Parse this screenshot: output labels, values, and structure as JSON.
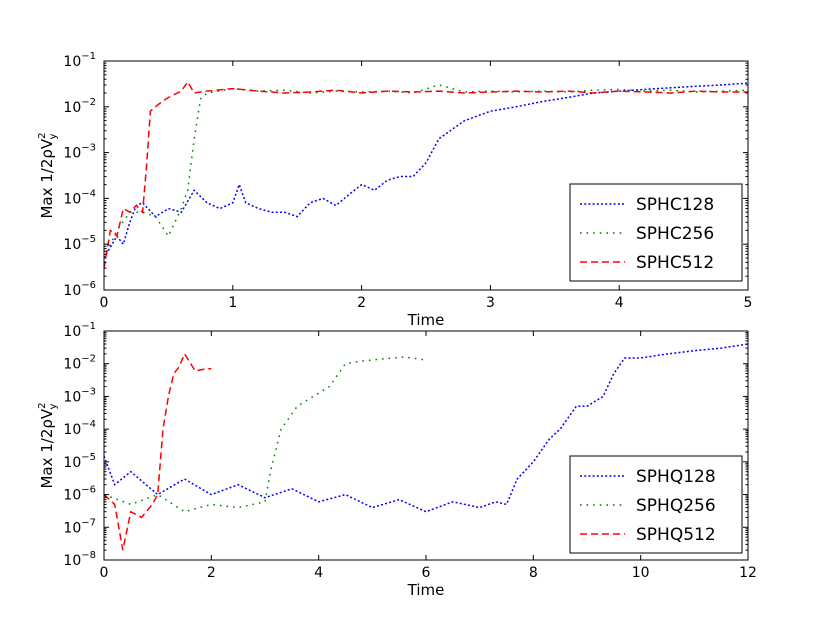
{
  "chart_data": [
    {
      "type": "line",
      "id": "top",
      "xlabel": "Time",
      "ylabel": "Max 1/2ρV",
      "ylabel_sub": "y",
      "ylabel_sup": "2",
      "yscale": "log",
      "xlim": [
        0,
        5
      ],
      "ylim_exp": [
        -6,
        -1
      ],
      "xticks": [
        0,
        1,
        2,
        3,
        4,
        5
      ],
      "xtick_labels": [
        "0",
        "1",
        "2",
        "3",
        "4",
        "5"
      ],
      "ytick_exps": [
        -6,
        -5,
        -4,
        -3,
        -2,
        -1
      ],
      "ytick_base": "10",
      "ytick_exp_labels": [
        "−6",
        "−5",
        "−4",
        "−3",
        "−2",
        "−1"
      ],
      "legend_position": "lower-right",
      "series": [
        {
          "name": "SPHC128",
          "color": "#0000ff",
          "dash": "2,2.2",
          "x": [
            0,
            0.1,
            0.15,
            0.2,
            0.25,
            0.3,
            0.4,
            0.5,
            0.6,
            0.7,
            0.8,
            0.9,
            1.0,
            1.05,
            1.1,
            1.2,
            1.3,
            1.4,
            1.5,
            1.6,
            1.7,
            1.8,
            1.9,
            2.0,
            2.1,
            2.2,
            2.3,
            2.4,
            2.5,
            2.6,
            2.8,
            3.0,
            3.2,
            3.4,
            3.6,
            3.8,
            4.0,
            4.2,
            4.4,
            4.6,
            4.8,
            5.0
          ],
          "y": [
            5e-06,
            1.5e-05,
            1e-05,
            3e-05,
            7e-05,
            8e-05,
            4e-05,
            6e-05,
            5e-05,
            0.00015,
            8e-05,
            6e-05,
            8e-05,
            0.0002,
            8e-05,
            6e-05,
            5e-05,
            5e-05,
            4e-05,
            8e-05,
            0.0001,
            7e-05,
            0.00012,
            0.0002,
            0.00015,
            0.00025,
            0.0003,
            0.0003,
            0.0006,
            0.002,
            0.005,
            0.008,
            0.01,
            0.013,
            0.016,
            0.02,
            0.022,
            0.024,
            0.026,
            0.028,
            0.03,
            0.033
          ]
        },
        {
          "name": "SPHC256",
          "color": "#008000",
          "dash": "1.6,5",
          "x": [
            0,
            0.1,
            0.2,
            0.3,
            0.4,
            0.5,
            0.6,
            0.65,
            0.7,
            0.75,
            0.8,
            1.0,
            1.2,
            1.4,
            1.6,
            1.8,
            2.0,
            2.2,
            2.4,
            2.6,
            2.8,
            3.0,
            3.2,
            3.4,
            3.6,
            3.8,
            4.0,
            4.2,
            4.4,
            4.6,
            4.8,
            5.0
          ],
          "y": [
            5e-06,
            2e-05,
            5e-05,
            5e-05,
            4e-05,
            1.5e-05,
            6e-05,
            0.00015,
            0.002,
            0.015,
            0.02,
            0.025,
            0.022,
            0.023,
            0.02,
            0.022,
            0.021,
            0.022,
            0.02,
            0.03,
            0.021,
            0.022,
            0.021,
            0.022,
            0.021,
            0.023,
            0.024,
            0.022,
            0.023,
            0.021,
            0.022,
            0.023
          ]
        },
        {
          "name": "SPHC512",
          "color": "#ff0000",
          "dash": "7,4",
          "x": [
            0,
            0.05,
            0.1,
            0.15,
            0.2,
            0.25,
            0.3,
            0.33,
            0.36,
            0.4,
            0.45,
            0.5,
            0.6,
            0.65,
            0.7,
            0.8,
            1.0,
            1.2,
            1.4,
            1.6,
            1.8,
            2.0,
            2.2,
            2.4,
            2.6,
            2.8,
            3.0,
            3.2,
            3.4,
            3.6,
            3.8,
            4.0,
            4.2,
            4.4,
            4.6,
            4.8,
            5.0
          ],
          "y": [
            3e-06,
            2e-05,
            1.5e-05,
            6e-05,
            5e-05,
            7e-05,
            5e-05,
            0.0005,
            0.008,
            0.01,
            0.013,
            0.016,
            0.022,
            0.035,
            0.02,
            0.022,
            0.025,
            0.022,
            0.02,
            0.021,
            0.023,
            0.02,
            0.022,
            0.021,
            0.022,
            0.02,
            0.021,
            0.022,
            0.021,
            0.022,
            0.02,
            0.022,
            0.021,
            0.02,
            0.022,
            0.021,
            0.021
          ]
        }
      ]
    },
    {
      "type": "line",
      "id": "bottom",
      "xlabel": "Time",
      "ylabel": "Max 1/2ρV",
      "ylabel_sub": "y",
      "ylabel_sup": "2",
      "yscale": "log",
      "xlim": [
        0,
        12
      ],
      "ylim_exp": [
        -8,
        -1
      ],
      "xticks": [
        0,
        2,
        4,
        6,
        8,
        10,
        12
      ],
      "xtick_labels": [
        "0",
        "2",
        "4",
        "6",
        "8",
        "10",
        "12"
      ],
      "ytick_exps": [
        -8,
        -7,
        -6,
        -5,
        -4,
        -3,
        -2,
        -1
      ],
      "ytick_base": "10",
      "ytick_exp_labels": [
        "−8",
        "−7",
        "−6",
        "−5",
        "−4",
        "−3",
        "−2",
        "−1"
      ],
      "legend_position": "lower-right",
      "series": [
        {
          "name": "SPHQ128",
          "color": "#0000ff",
          "dash": "2,2.2",
          "x": [
            0,
            0.2,
            0.5,
            1.0,
            1.5,
            2.0,
            2.5,
            3.0,
            3.5,
            4.0,
            4.5,
            5.0,
            5.5,
            6.0,
            6.5,
            7.0,
            7.3,
            7.5,
            7.7,
            8.0,
            8.3,
            8.5,
            8.8,
            9.0,
            9.3,
            9.5,
            9.7,
            10.0,
            10.5,
            11.0,
            11.5,
            12.0
          ],
          "y": [
            1.5e-05,
            2e-06,
            5e-06,
            1e-06,
            3e-06,
            1e-06,
            2e-06,
            8e-07,
            1.5e-06,
            6e-07,
            1e-06,
            4e-07,
            7e-07,
            3e-07,
            6e-07,
            4e-07,
            6e-07,
            5e-07,
            3e-06,
            1e-05,
            5e-05,
            0.0001,
            0.0005,
            0.0005,
            0.001,
            0.005,
            0.015,
            0.015,
            0.02,
            0.025,
            0.03,
            0.04
          ]
        },
        {
          "name": "SPHQ256",
          "color": "#008000",
          "dash": "1.6,5",
          "x": [
            0,
            0.5,
            1.0,
            1.5,
            2.0,
            2.5,
            3.0,
            3.1,
            3.3,
            3.6,
            3.9,
            4.2,
            4.5,
            4.8,
            5.2,
            5.6,
            6.0
          ],
          "y": [
            1e-06,
            5e-07,
            1e-06,
            3e-07,
            5e-07,
            4e-07,
            6e-07,
            5e-06,
            0.0001,
            0.0005,
            0.001,
            0.002,
            0.01,
            0.012,
            0.014,
            0.016,
            0.013
          ]
        },
        {
          "name": "SPHQ512",
          "color": "#ff0000",
          "dash": "7,4",
          "x": [
            0,
            0.2,
            0.35,
            0.5,
            0.7,
            0.9,
            1.0,
            1.1,
            1.2,
            1.3,
            1.4,
            1.5,
            1.7,
            1.9,
            2.0
          ],
          "y": [
            1e-06,
            5e-07,
            2e-08,
            3e-07,
            2e-07,
            5e-07,
            1e-06,
            0.0001,
            0.001,
            0.005,
            0.008,
            0.02,
            0.006,
            0.007,
            0.007
          ]
        }
      ]
    }
  ]
}
